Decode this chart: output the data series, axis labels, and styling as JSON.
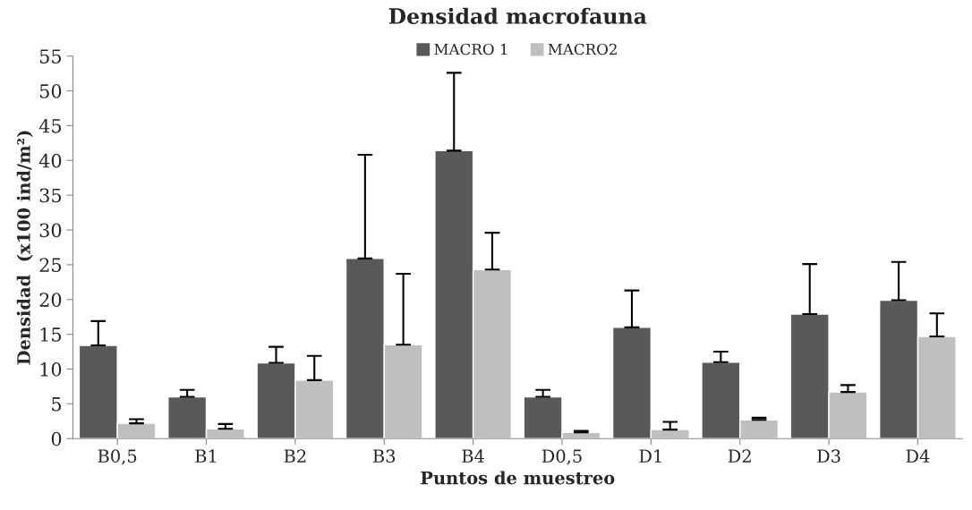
{
  "chart_data": {
    "type": "bar",
    "title": "Densidad macrofauna",
    "xlabel": "Puntos de muestreo",
    "ylabel": "Densidad  (x100 ind/m²)",
    "categories": [
      "B0,5",
      "B1",
      "B2",
      "B3",
      "B4",
      "D0,5",
      "D1",
      "D2",
      "D3",
      "D4"
    ],
    "series": [
      {
        "name": "MACRO 1",
        "color": "#595959",
        "values": [
          13.4,
          6.0,
          10.9,
          25.9,
          41.4,
          6.0,
          16.0,
          11.0,
          17.9,
          19.9
        ],
        "errors": [
          [
            13.4,
            16.9
          ],
          [
            6.0,
            7.0
          ],
          [
            10.9,
            13.2
          ],
          [
            25.9,
            40.8
          ],
          [
            41.4,
            52.6
          ],
          [
            6.0,
            7.0
          ],
          [
            16.0,
            21.3
          ],
          [
            11.0,
            12.5
          ],
          [
            17.9,
            25.1
          ],
          [
            19.9,
            25.4
          ]
        ]
      },
      {
        "name": "MACRO2",
        "color": "#bfbfbf",
        "values": [
          2.2,
          1.4,
          8.4,
          13.5,
          24.3,
          0.9,
          1.3,
          2.7,
          6.7,
          14.7
        ],
        "errors": [
          [
            2.2,
            2.8
          ],
          [
            1.4,
            2.1
          ],
          [
            8.4,
            11.9
          ],
          [
            13.5,
            23.7
          ],
          [
            24.3,
            29.6
          ],
          [
            0.9,
            1.1
          ],
          [
            1.3,
            2.4
          ],
          [
            2.7,
            3.0
          ],
          [
            6.7,
            7.7
          ],
          [
            14.7,
            18.0
          ]
        ]
      }
    ],
    "ylim": [
      0,
      55
    ],
    "yticks": [
      0,
      5,
      10,
      15,
      20,
      25,
      30,
      35,
      40,
      45,
      50,
      55
    ],
    "grid": false,
    "legend": "top"
  }
}
